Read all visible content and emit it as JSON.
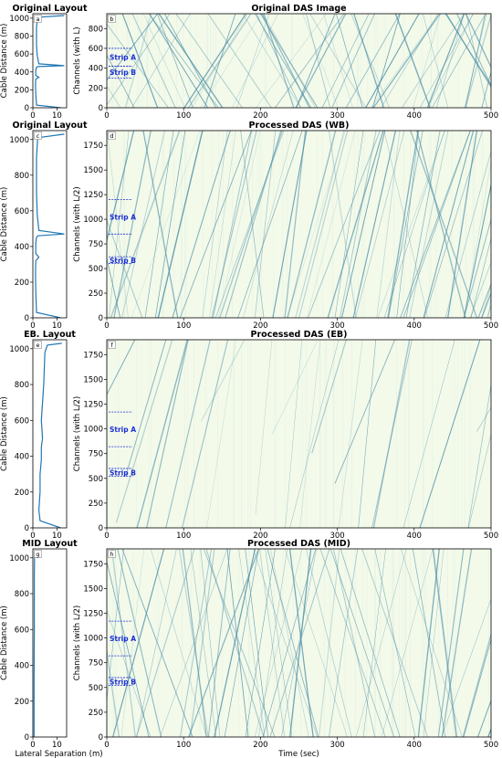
{
  "figure": {
    "xlabel_layout": "Lateral Separation (m)",
    "xlabel_das": "Time (sec)",
    "ylabel_layout": "Cable Distance (m)",
    "strip_a": "Strip A",
    "strip_b": "Strip B",
    "colors": {
      "background": "#f3faea",
      "stripe": "#4f8fa6",
      "layout_line": "#1f77b4",
      "strip_text": "#1a2fd6"
    }
  },
  "chart_data": [
    {
      "panel": "a",
      "type": "line",
      "title": "Original Layout",
      "xlabel": "",
      "ylabel": "Cable Distance (m)",
      "xlim": [
        0,
        14
      ],
      "ylim": [
        0,
        1050
      ],
      "xticks": [
        0,
        10
      ],
      "yticks": [
        0,
        200,
        400,
        600,
        800,
        1000
      ],
      "series": [
        {
          "x": [
            11.5,
            1.5,
            1.2,
            1.1,
            1.2,
            2.5,
            1.2,
            1.2,
            1.5,
            2.0,
            13.0,
            2.5,
            1.8,
            1.5,
            1.5,
            2.0,
            13.0
          ],
          "y": [
            0,
            30,
            150,
            250,
            320,
            340,
            360,
            420,
            450,
            460,
            470,
            490,
            580,
            700,
            900,
            1010,
            1030
          ]
        }
      ]
    },
    {
      "panel": "b",
      "type": "heatmap",
      "title": "Original DAS Image",
      "xlabel": "",
      "ylabel": "Channels (with L)",
      "xlim": [
        0,
        500
      ],
      "ylim": [
        0,
        950
      ],
      "xticks": [
        0,
        100,
        200,
        300,
        400,
        500
      ],
      "yticks": [
        0,
        200,
        400,
        600,
        800
      ],
      "strips": {
        "a": [
          420,
          600
        ],
        "b": [
          300,
          420
        ]
      }
    },
    {
      "panel": "c",
      "type": "line",
      "title": "Original Layout",
      "xlabel": "",
      "ylabel": "Cable Distance (m)",
      "xlim": [
        0,
        14
      ],
      "ylim": [
        0,
        1050
      ],
      "xticks": [
        0,
        10
      ],
      "yticks": [
        0,
        200,
        400,
        600,
        800,
        1000
      ],
      "series": [
        {
          "x": [
            11.5,
            1.5,
            1.2,
            1.1,
            1.2,
            2.5,
            1.2,
            1.2,
            1.5,
            2.0,
            13.0,
            2.5,
            1.8,
            1.5,
            1.5,
            2.0,
            13.0
          ],
          "y": [
            0,
            30,
            150,
            250,
            320,
            340,
            360,
            420,
            450,
            460,
            470,
            490,
            580,
            700,
            900,
            1010,
            1030
          ]
        }
      ]
    },
    {
      "panel": "d",
      "type": "heatmap",
      "title": "Processed DAS (WB)",
      "xlabel": "",
      "ylabel": "Channels (with L/2)",
      "xlim": [
        0,
        500
      ],
      "ylim": [
        0,
        1900
      ],
      "xticks": [
        0,
        100,
        200,
        300,
        400,
        500
      ],
      "yticks": [
        0,
        250,
        500,
        750,
        1000,
        1250,
        1500,
        1750
      ],
      "strips": {
        "a": [
          850,
          1200
        ],
        "b": [
          550,
          620
        ]
      }
    },
    {
      "panel": "e",
      "type": "line",
      "title": "EB. Layout",
      "xlabel": "",
      "ylabel": "Cable Distance (m)",
      "xlim": [
        0,
        14
      ],
      "ylim": [
        0,
        1050
      ],
      "xticks": [
        0,
        10
      ],
      "yticks": [
        0,
        200,
        400,
        600,
        800,
        1000
      ],
      "series": [
        {
          "x": [
            11.5,
            3.0,
            2.5,
            3.0,
            3.0,
            3.5,
            3.5,
            4.0,
            3.5,
            4.5,
            5.0,
            6.0,
            12.0
          ],
          "y": [
            0,
            40,
            100,
            200,
            300,
            380,
            450,
            500,
            600,
            800,
            980,
            1020,
            1030
          ]
        }
      ]
    },
    {
      "panel": "f",
      "type": "heatmap",
      "title": "Processed DAS (EB)",
      "xlabel": "",
      "ylabel": "Channels (with L/2)",
      "xlim": [
        0,
        500
      ],
      "ylim": [
        0,
        1900
      ],
      "xticks": [
        0,
        100,
        200,
        300,
        400,
        500
      ],
      "yticks": [
        0,
        250,
        500,
        750,
        1000,
        1250,
        1500,
        1750
      ],
      "strips": {
        "a": [
          820,
          1170
        ],
        "b": [
          520,
          600
        ]
      }
    },
    {
      "panel": "g",
      "type": "line",
      "title": "MID Layout",
      "xlabel": "Lateral Separation (m)",
      "ylabel": "Cable Distance (m)",
      "xlim": [
        0,
        14
      ],
      "ylim": [
        0,
        1050
      ],
      "xticks": [
        0,
        10
      ],
      "yticks": [
        0,
        200,
        400,
        600,
        800,
        1000
      ],
      "series": [
        {
          "x": [
            0.5,
            0.5,
            0.6,
            0.6,
            0.7
          ],
          "y": [
            0,
            300,
            600,
            900,
            1030
          ]
        }
      ]
    },
    {
      "panel": "h",
      "type": "heatmap",
      "title": "Processed DAS (MID)",
      "xlabel": "Time (sec)",
      "ylabel": "Channels (with L/2)",
      "xlim": [
        0,
        500
      ],
      "ylim": [
        0,
        1900
      ],
      "xticks": [
        0,
        100,
        200,
        300,
        400,
        500
      ],
      "yticks": [
        0,
        250,
        500,
        750,
        1000,
        1250,
        1500,
        1750
      ],
      "strips": {
        "a": [
          820,
          1170
        ],
        "b": [
          520,
          600
        ]
      }
    }
  ]
}
